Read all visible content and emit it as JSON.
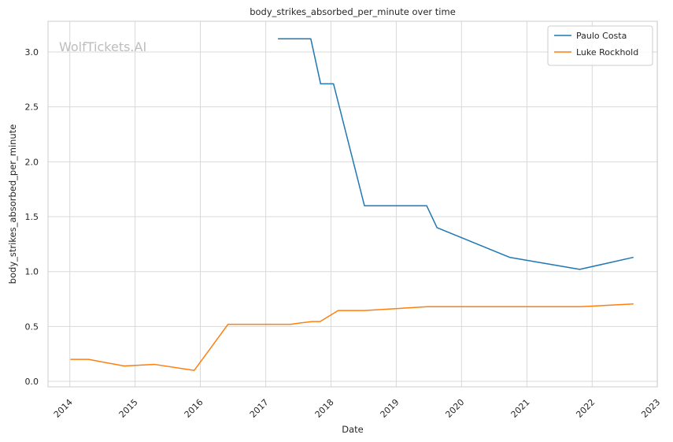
{
  "chart_data": {
    "type": "line",
    "title": "body_strikes_absorbed_per_minute over time",
    "xlabel": "Date",
    "ylabel": "body_strikes_absorbed_per_minute",
    "watermark": "WolfTickets.AI",
    "x_type": "date",
    "xlim": [
      "2013-09-01",
      "2022-12-31"
    ],
    "ylim": [
      -0.05,
      3.28
    ],
    "x_ticks": [
      "2014-01-01",
      "2015-01-01",
      "2016-01-01",
      "2017-01-01",
      "2018-01-01",
      "2019-01-01",
      "2020-01-01",
      "2021-01-01",
      "2022-01-01",
      "2023-01-01"
    ],
    "x_tick_labels": [
      "2014",
      "2015",
      "2016",
      "2017",
      "2018",
      "2019",
      "2020",
      "2021",
      "2022",
      "2023"
    ],
    "y_ticks": [
      0.0,
      0.5,
      1.0,
      1.5,
      2.0,
      2.5,
      3.0
    ],
    "y_tick_labels": [
      "0.0",
      "0.5",
      "1.0",
      "1.5",
      "2.0",
      "2.5",
      "3.0"
    ],
    "grid": true,
    "legend_position": "top-right",
    "series": [
      {
        "name": "Paulo Costa",
        "color": "#1f77b4",
        "points": [
          [
            "2017-03-10",
            3.12
          ],
          [
            "2017-09-10",
            3.12
          ],
          [
            "2017-11-04",
            2.71
          ],
          [
            "2018-01-15",
            2.71
          ],
          [
            "2018-07-07",
            1.6
          ],
          [
            "2019-06-20",
            1.6
          ],
          [
            "2019-08-17",
            1.4
          ],
          [
            "2020-09-26",
            1.13
          ],
          [
            "2021-10-23",
            1.02
          ],
          [
            "2022-08-20",
            1.13
          ]
        ]
      },
      {
        "name": "Luke Rockhold",
        "color": "#ff7f0e",
        "points": [
          [
            "2014-01-04",
            0.2
          ],
          [
            "2014-04-16",
            0.2
          ],
          [
            "2014-11-01",
            0.14
          ],
          [
            "2015-04-18",
            0.155
          ],
          [
            "2015-11-28",
            0.1
          ],
          [
            "2016-06-04",
            0.52
          ],
          [
            "2017-05-20",
            0.52
          ],
          [
            "2017-09-16",
            0.545
          ],
          [
            "2017-11-01",
            0.545
          ],
          [
            "2018-02-10",
            0.645
          ],
          [
            "2018-07-07",
            0.645
          ],
          [
            "2019-06-25",
            0.68
          ],
          [
            "2021-11-01",
            0.68
          ],
          [
            "2022-08-20",
            0.705
          ]
        ]
      }
    ]
  }
}
